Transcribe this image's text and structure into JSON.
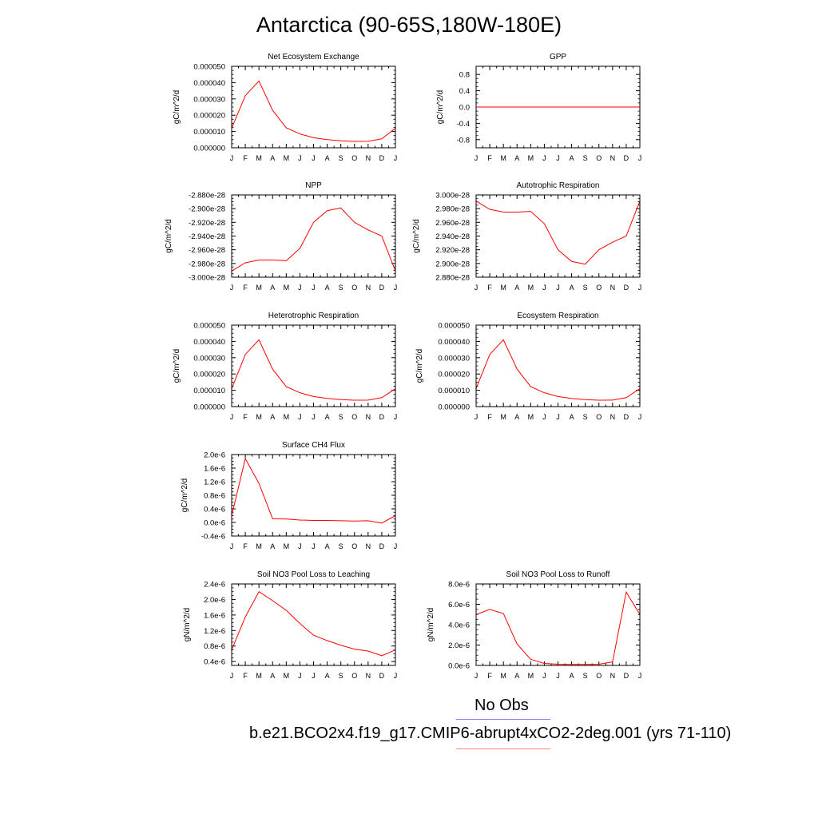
{
  "title": "Antarctica (90-65S,180W-180E)",
  "legend": [
    {
      "label": "No Obs",
      "color": "#8080ff"
    },
    {
      "label": "b.e21.BCO2x4.f19_g17.CMIP6-abrupt4xCO2-2deg.001 (yrs 71-110)",
      "color": "#ff8080"
    }
  ],
  "line_color": "#ff0000",
  "chart_data": [
    {
      "type": "line",
      "title": "Net Ecosystem Exchange",
      "ylabel": "gC/m^2/d",
      "categories": [
        "J",
        "F",
        "M",
        "A",
        "M",
        "J",
        "J",
        "A",
        "S",
        "O",
        "N",
        "D",
        "J"
      ],
      "ylim": [
        0,
        5e-05
      ],
      "yticks": [
        0,
        1e-05,
        2e-05,
        3e-05,
        4e-05,
        5e-05
      ],
      "ytick_labels": [
        "0.000000",
        "0.000010",
        "0.000020",
        "0.000030",
        "0.000040",
        "0.000050"
      ],
      "values": [
        1.2e-05,
        3.2e-05,
        4.1e-05,
        2.3e-05,
        1.23e-05,
        8.5e-06,
        6.2e-06,
        5e-06,
        4.3e-06,
        3.9e-06,
        4e-06,
        5.5e-06,
        1.2e-05
      ]
    },
    {
      "type": "line",
      "title": "GPP",
      "ylabel": "gC/m^2/d",
      "categories": [
        "J",
        "F",
        "M",
        "A",
        "M",
        "J",
        "J",
        "A",
        "S",
        "O",
        "N",
        "D",
        "J"
      ],
      "ylim": [
        -1.0,
        1.0
      ],
      "yticks": [
        -0.8,
        -0.4,
        0.0,
        0.4,
        0.8
      ],
      "ytick_labels": [
        "-0.8",
        "-0.4",
        "0.0",
        "0.4",
        "0.8"
      ],
      "values": [
        0,
        0,
        0,
        0,
        0,
        0,
        0,
        0,
        0,
        0,
        0,
        0,
        0
      ]
    },
    {
      "type": "line",
      "title": "NPP",
      "ylabel": "gC/m^2/d",
      "categories": [
        "J",
        "F",
        "M",
        "A",
        "M",
        "J",
        "J",
        "A",
        "S",
        "O",
        "N",
        "D",
        "J"
      ],
      "ylim": [
        -3e-28,
        -2.88e-28
      ],
      "yticks": [
        -3e-28,
        -2.98e-28,
        -2.96e-28,
        -2.94e-28,
        -2.92e-28,
        -2.9e-28,
        -2.88e-28
      ],
      "ytick_labels": [
        "-3.000e-28",
        "-2.980e-28",
        "-2.960e-28",
        "-2.940e-28",
        "-2.920e-28",
        "-2.900e-28",
        "-2.880e-28"
      ],
      "values": [
        -2.991e-28,
        -2.979e-28,
        -2.975e-28,
        -2.975e-28,
        -2.976e-28,
        -2.958e-28,
        -2.92e-28,
        -2.903e-28,
        -2.899e-28,
        -2.92e-28,
        -2.931e-28,
        -2.94e-28,
        -2.991e-28
      ]
    },
    {
      "type": "line",
      "title": "Autotrophic Respiration",
      "ylabel": "gC/m^2/d",
      "categories": [
        "J",
        "F",
        "M",
        "A",
        "M",
        "J",
        "J",
        "A",
        "S",
        "O",
        "N",
        "D",
        "J"
      ],
      "ylim": [
        2.88e-28,
        3e-28
      ],
      "yticks": [
        2.88e-28,
        2.9e-28,
        2.92e-28,
        2.94e-28,
        2.96e-28,
        2.98e-28,
        3e-28
      ],
      "ytick_labels": [
        "2.880e-28",
        "2.900e-28",
        "2.920e-28",
        "2.940e-28",
        "2.960e-28",
        "2.980e-28",
        "3.000e-28"
      ],
      "values": [
        2.991e-28,
        2.979e-28,
        2.975e-28,
        2.975e-28,
        2.976e-28,
        2.958e-28,
        2.92e-28,
        2.903e-28,
        2.899e-28,
        2.92e-28,
        2.931e-28,
        2.94e-28,
        2.991e-28
      ]
    },
    {
      "type": "line",
      "title": "Heterotrophic Respiration",
      "ylabel": "gC/m^2/d",
      "categories": [
        "J",
        "F",
        "M",
        "A",
        "M",
        "J",
        "J",
        "A",
        "S",
        "O",
        "N",
        "D",
        "J"
      ],
      "ylim": [
        0,
        5e-05
      ],
      "yticks": [
        0,
        1e-05,
        2e-05,
        3e-05,
        4e-05,
        5e-05
      ],
      "ytick_labels": [
        "0.000000",
        "0.000010",
        "0.000020",
        "0.000030",
        "0.000040",
        "0.000050"
      ],
      "values": [
        1.1e-05,
        3.2e-05,
        4.1e-05,
        2.3e-05,
        1.23e-05,
        8.5e-06,
        6.2e-06,
        5e-06,
        4.3e-06,
        3.9e-06,
        4e-06,
        5.5e-06,
        1.1e-05
      ]
    },
    {
      "type": "line",
      "title": "Ecosystem Respiration",
      "ylabel": "gC/m^2/d",
      "categories": [
        "J",
        "F",
        "M",
        "A",
        "M",
        "J",
        "J",
        "A",
        "S",
        "O",
        "N",
        "D",
        "J"
      ],
      "ylim": [
        0,
        5e-05
      ],
      "yticks": [
        0,
        1e-05,
        2e-05,
        3e-05,
        4e-05,
        5e-05
      ],
      "ytick_labels": [
        "0.000000",
        "0.000010",
        "0.000020",
        "0.000030",
        "0.000040",
        "0.000050"
      ],
      "values": [
        1.1e-05,
        3.2e-05,
        4.1e-05,
        2.3e-05,
        1.23e-05,
        8.5e-06,
        6.2e-06,
        5e-06,
        4.3e-06,
        3.9e-06,
        4e-06,
        5.5e-06,
        1.1e-05
      ]
    },
    {
      "type": "line",
      "title": "Surface CH4 Flux",
      "ylabel": "gC/m^2/d",
      "categories": [
        "J",
        "F",
        "M",
        "A",
        "M",
        "J",
        "J",
        "A",
        "S",
        "O",
        "N",
        "D",
        "J"
      ],
      "ylim": [
        -4e-07,
        2e-06
      ],
      "yticks": [
        -4e-07,
        0.0,
        4e-07,
        8e-07,
        1.2e-06,
        1.6e-06,
        2e-06
      ],
      "ytick_labels": [
        "-0.4e-6",
        "0.0e-6",
        "0.4e-6",
        "0.8e-6",
        "1.2e-6",
        "1.6e-6",
        "2.0e-6"
      ],
      "values": [
        2e-07,
        1.88e-06,
        1.15e-06,
        1.1e-07,
        1e-07,
        7e-08,
        6e-08,
        6e-08,
        5e-08,
        4e-08,
        5e-08,
        -2e-08,
        2e-07
      ]
    },
    {
      "type": "line",
      "title": "Soil NO3 Pool Loss to Leaching",
      "ylabel": "gN/m^2/d",
      "categories": [
        "J",
        "F",
        "M",
        "A",
        "M",
        "J",
        "J",
        "A",
        "S",
        "O",
        "N",
        "D",
        "J"
      ],
      "ylim": [
        3e-07,
        2.4e-06
      ],
      "yticks": [
        4e-07,
        8e-07,
        1.2e-06,
        1.6e-06,
        2e-06,
        2.4e-06
      ],
      "ytick_labels": [
        "0.4e-6",
        "0.8e-6",
        "1.2e-6",
        "1.6e-6",
        "2.0e-6",
        "2.4e-6"
      ],
      "values": [
        7e-07,
        1.55e-06,
        2.2e-06,
        1.97e-06,
        1.72e-06,
        1.38e-06,
        1.08e-06,
        9.4e-07,
        8.2e-07,
        7.2e-07,
        6.7e-07,
        5.5e-07,
        7e-07
      ]
    },
    {
      "type": "line",
      "title": "Soil NO3 Pool Loss to Runoff",
      "ylabel": "gN/m^2/d",
      "categories": [
        "J",
        "F",
        "M",
        "A",
        "M",
        "J",
        "J",
        "A",
        "S",
        "O",
        "N",
        "D",
        "J"
      ],
      "ylim": [
        0,
        8e-06
      ],
      "yticks": [
        0,
        2e-06,
        4e-06,
        6e-06,
        8e-06
      ],
      "ytick_labels": [
        "0.0e-6",
        "2.0e-6",
        "4.0e-6",
        "6.0e-6",
        "8.0e-6"
      ],
      "values": [
        5e-06,
        5.5e-06,
        5.1e-06,
        2.1e-06,
        6e-07,
        2e-07,
        1.2e-07,
        1e-07,
        1e-07,
        1.2e-07,
        3.5e-07,
        7.2e-06,
        5e-06
      ]
    }
  ]
}
